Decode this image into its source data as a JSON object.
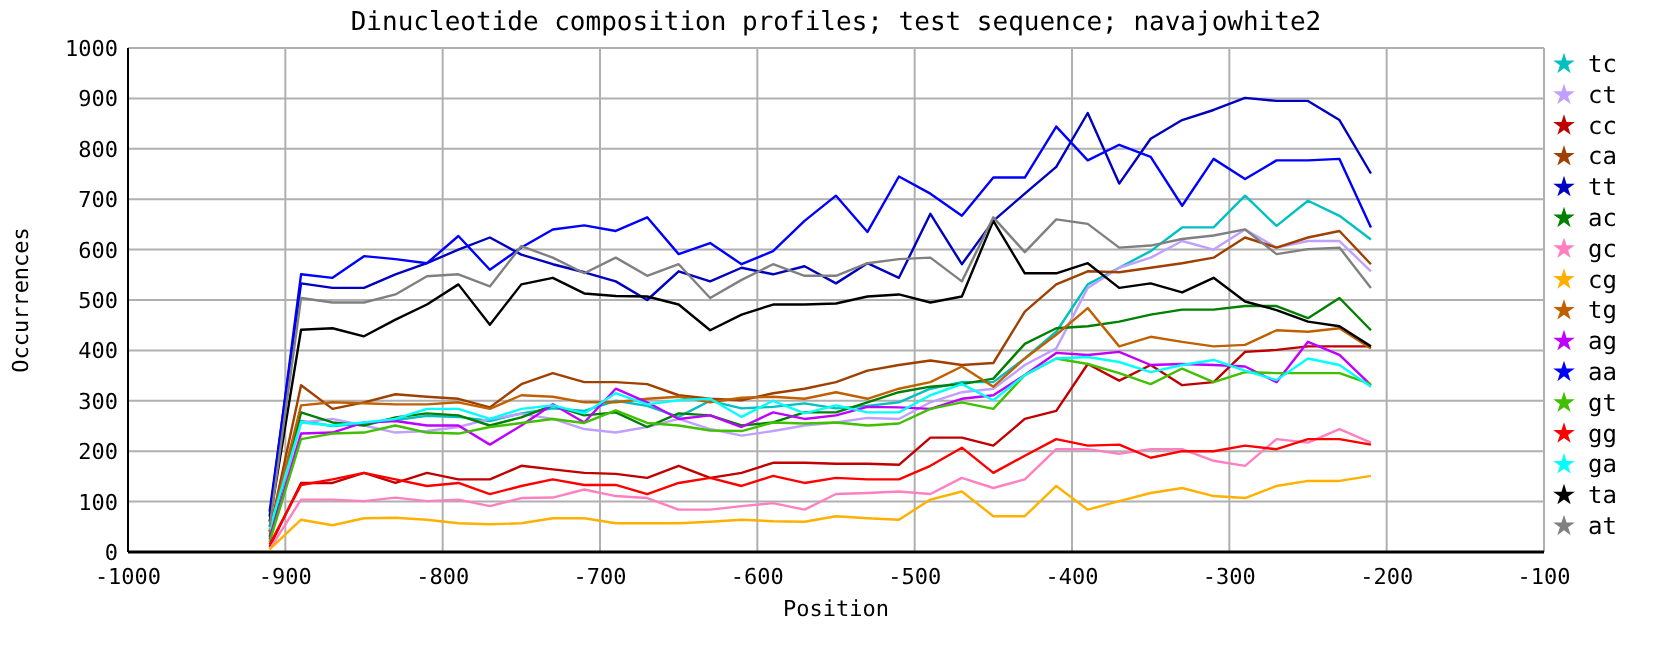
{
  "chart_data": {
    "type": "line",
    "title": "Dinucleotide composition profiles; test sequence; navajowhite2",
    "xlabel": "Position",
    "ylabel": "Occurrences",
    "xlim": [
      -1000,
      -100
    ],
    "xticks": [
      -1000,
      -900,
      -800,
      -700,
      -600,
      -500,
      -400,
      -300,
      -200,
      -100
    ],
    "ylim": [
      0,
      1000
    ],
    "yticks": [
      0,
      100,
      200,
      300,
      400,
      500,
      600,
      700,
      800,
      900,
      1000
    ],
    "grid": true,
    "legend": "right",
    "marker": "none",
    "line_style": "solid",
    "x": [
      -910,
      -890,
      -870,
      -850,
      -830,
      -810,
      -790,
      -770,
      -750,
      -730,
      -710,
      -690,
      -670,
      -650,
      -630,
      -610,
      -590,
      -570,
      -550,
      -530,
      -510,
      -490,
      -470,
      -450,
      -430,
      -410,
      -390,
      -370,
      -350,
      -330,
      -310,
      -290,
      -270,
      -250,
      -230,
      -210
    ],
    "series": [
      {
        "name": "tc",
        "color": "#00c0c0",
        "values": [
          50,
          260,
          250,
          255,
          262,
          270,
          268,
          260,
          275,
          285,
          280,
          300,
          290,
          268,
          300,
          285,
          288,
          295,
          285,
          290,
          297,
          324,
          337,
          337,
          384,
          437,
          531,
          564,
          597,
          644,
          644,
          707,
          647,
          697,
          667,
          620
        ]
      },
      {
        "name": "ct",
        "color": "#c0a0ff",
        "values": [
          35,
          257,
          264,
          251,
          237,
          240,
          248,
          264,
          274,
          264,
          244,
          237,
          248,
          264,
          244,
          231,
          240,
          251,
          257,
          266,
          264,
          297,
          317,
          324,
          371,
          404,
          524,
          564,
          584,
          617,
          600,
          640,
          604,
          617,
          617,
          557
        ]
      },
      {
        "name": "cc",
        "color": "#c00000",
        "values": [
          10,
          137,
          137,
          157,
          137,
          157,
          144,
          144,
          171,
          164,
          157,
          155,
          147,
          171,
          147,
          157,
          177,
          177,
          175,
          175,
          173,
          227,
          227,
          211,
          264,
          280,
          373,
          340,
          371,
          331,
          337,
          397,
          401,
          408,
          408,
          408
        ]
      },
      {
        "name": "ca",
        "color": "#a04000",
        "values": [
          40,
          331,
          284,
          297,
          313,
          308,
          304,
          287,
          333,
          355,
          337,
          337,
          333,
          311,
          304,
          301,
          315,
          324,
          337,
          360,
          371,
          380,
          371,
          375,
          477,
          531,
          557,
          555,
          564,
          573,
          584,
          624,
          604,
          624,
          637,
          571
        ]
      },
      {
        "name": "tt",
        "color": "#0000c0",
        "values": [
          80,
          533,
          524,
          524,
          551,
          573,
          600,
          624,
          590,
          571,
          555,
          537,
          500,
          557,
          537,
          564,
          551,
          567,
          533,
          573,
          544,
          671,
          571,
          657,
          711,
          764,
          871,
          731,
          820,
          857,
          877,
          901,
          895,
          895,
          857,
          751
        ]
      },
      {
        "name": "ac",
        "color": "#008000",
        "values": [
          30,
          277,
          257,
          251,
          267,
          275,
          271,
          251,
          267,
          291,
          271,
          277,
          248,
          275,
          271,
          251,
          257,
          277,
          277,
          297,
          317,
          328,
          333,
          344,
          413,
          444,
          448,
          457,
          471,
          481,
          481,
          488,
          488,
          464,
          504,
          440
        ]
      },
      {
        "name": "gc",
        "color": "#ff80c0",
        "values": [
          5,
          104,
          104,
          101,
          108,
          101,
          104,
          91,
          107,
          108,
          124,
          111,
          107,
          84,
          84,
          91,
          97,
          84,
          115,
          117,
          120,
          115,
          147,
          127,
          144,
          204,
          204,
          195,
          204,
          204,
          181,
          171,
          224,
          217,
          244,
          217
        ]
      },
      {
        "name": "cg",
        "color": "#ffb000",
        "values": [
          5,
          64,
          53,
          67,
          68,
          64,
          57,
          55,
          57,
          67,
          67,
          57,
          57,
          57,
          60,
          64,
          61,
          60,
          71,
          67,
          64,
          104,
          120,
          71,
          71,
          131,
          84,
          101,
          117,
          127,
          111,
          107,
          131,
          141,
          141,
          151
        ]
      },
      {
        "name": "tg",
        "color": "#c06000",
        "values": [
          40,
          291,
          297,
          295,
          293,
          293,
          297,
          284,
          311,
          308,
          297,
          297,
          304,
          308,
          297,
          306,
          308,
          304,
          317,
          304,
          324,
          337,
          368,
          328,
          384,
          431,
          484,
          408,
          427,
          417,
          408,
          411,
          440,
          437,
          444,
          404
        ]
      },
      {
        "name": "ag",
        "color": "#c000ff",
        "values": [
          25,
          235,
          237,
          257,
          260,
          251,
          251,
          213,
          251,
          293,
          257,
          324,
          297,
          264,
          271,
          248,
          277,
          264,
          271,
          288,
          287,
          284,
          304,
          311,
          351,
          395,
          391,
          397,
          371,
          373,
          371,
          368,
          337,
          417,
          391,
          331
        ]
      },
      {
        "name": "aa",
        "color": "#0000ff",
        "values": [
          70,
          551,
          544,
          587,
          581,
          573,
          627,
          560,
          604,
          640,
          648,
          637,
          664,
          591,
          613,
          571,
          597,
          657,
          707,
          635,
          745,
          711,
          667,
          743,
          743,
          844,
          777,
          808,
          784,
          687,
          780,
          740,
          777,
          777,
          780,
          644
        ]
      },
      {
        "name": "gt",
        "color": "#40c000",
        "values": [
          20,
          224,
          235,
          237,
          251,
          237,
          235,
          248,
          256,
          264,
          256,
          281,
          256,
          251,
          241,
          240,
          257,
          255,
          257,
          251,
          255,
          284,
          297,
          284,
          351,
          384,
          373,
          355,
          333,
          364,
          337,
          357,
          355,
          355,
          355,
          333
        ]
      },
      {
        "name": "gg",
        "color": "#ff0000",
        "values": [
          15,
          133,
          144,
          157,
          144,
          131,
          137,
          115,
          131,
          144,
          133,
          133,
          115,
          137,
          147,
          131,
          151,
          137,
          147,
          144,
          144,
          171,
          207,
          157,
          191,
          224,
          211,
          213,
          187,
          200,
          200,
          211,
          204,
          224,
          224,
          213
        ]
      },
      {
        "name": "ga",
        "color": "#00ffff",
        "values": [
          45,
          257,
          251,
          257,
          264,
          284,
          284,
          264,
          284,
          291,
          275,
          315,
          293,
          301,
          304,
          268,
          300,
          275,
          291,
          277,
          277,
          311,
          333,
          301,
          351,
          384,
          387,
          377,
          357,
          371,
          381,
          360,
          341,
          384,
          371,
          328
        ]
      },
      {
        "name": "ta",
        "color": "#000000",
        "values": [
          60,
          441,
          444,
          428,
          461,
          491,
          531,
          451,
          531,
          544,
          513,
          508,
          507,
          491,
          440,
          471,
          491,
          491,
          493,
          507,
          511,
          495,
          507,
          657,
          553,
          553,
          573,
          524,
          533,
          515,
          544,
          497,
          480,
          457,
          448,
          408
        ]
      },
      {
        "name": "at",
        "color": "#808080",
        "values": [
          50,
          504,
          495,
          495,
          511,
          547,
          551,
          527,
          607,
          584,
          553,
          584,
          548,
          571,
          504,
          540,
          571,
          548,
          548,
          573,
          581,
          584,
          537,
          664,
          595,
          660,
          651,
          604,
          608,
          621,
          628,
          640,
          591,
          601,
          604,
          524
        ]
      }
    ]
  }
}
